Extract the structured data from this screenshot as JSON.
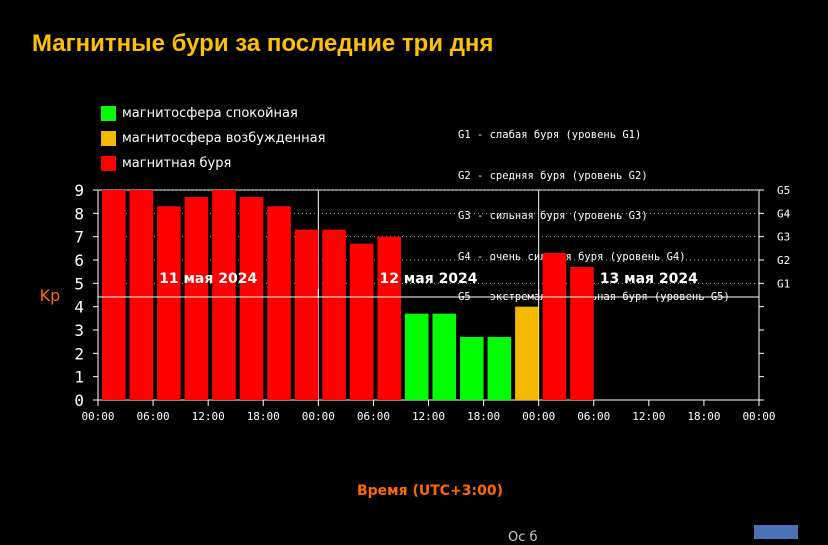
{
  "title": "Магнитные бури за последние три дня",
  "legend_status": [
    {
      "label": "магнитосфера спокойная",
      "color": "#00ff00"
    },
    {
      "label": "магнитосфера возбужденная",
      "color": "#f5b800"
    },
    {
      "label": "магнитная буря",
      "color": "#ff0000"
    }
  ],
  "legend_storm_levels": [
    "G1 - слабая буря (уровень G1)",
    "G2 - средняя буря (уровень G2)",
    "G3 - сильная буря (уровень G3)",
    "G4 - очень сильная буря (уровень G4)",
    "G5 - экстремально сильная буря (уровень G5)"
  ],
  "footer_text": "Ос    б",
  "chart_data": {
    "type": "bar",
    "ylabel": "Kp",
    "xlabel": "Время (UTC+3:00)",
    "ylim": [
      0,
      9
    ],
    "y_ticks": [
      "0",
      "1",
      "2",
      "3",
      "4",
      "5",
      "6",
      "7",
      "8",
      "9"
    ],
    "g_levels": [
      {
        "label": "G1",
        "kp": 5
      },
      {
        "label": "G2",
        "kp": 6
      },
      {
        "label": "G3",
        "kp": 7
      },
      {
        "label": "G4",
        "kp": 8
      },
      {
        "label": "G5",
        "kp": 9
      }
    ],
    "x_ticks": [
      "00:00",
      "06:00",
      "12:00",
      "18:00",
      "00:00",
      "06:00",
      "12:00",
      "18:00",
      "00:00",
      "06:00",
      "12:00",
      "18:00",
      "00:00"
    ],
    "days": [
      "11 мая 2024",
      "12 мая 2024",
      "13 мая 2024"
    ],
    "slots_per_day": 8,
    "values": [
      9.0,
      9.0,
      8.3,
      8.7,
      9.0,
      8.7,
      8.3,
      7.3,
      7.3,
      6.7,
      7.0,
      3.7,
      3.7,
      2.7,
      2.7,
      4.0,
      6.3,
      5.7
    ],
    "colors": [
      "#ff0000",
      "#ff0000",
      "#ff0000",
      "#ff0000",
      "#ff0000",
      "#ff0000",
      "#ff0000",
      "#ff0000",
      "#ff0000",
      "#ff0000",
      "#ff0000",
      "#00ff00",
      "#00ff00",
      "#00ff00",
      "#00ff00",
      "#f5b800",
      "#ff0000",
      "#ff0000"
    ],
    "grid": true,
    "legend_position": "top"
  }
}
